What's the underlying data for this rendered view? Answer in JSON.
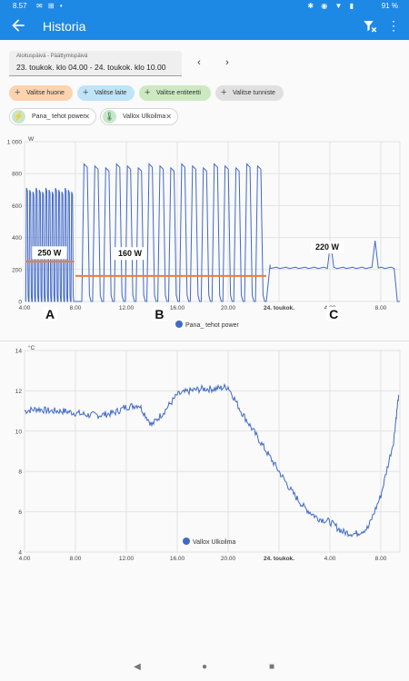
{
  "status_bar": {
    "time": "8.57",
    "left_icons": "✉ ⊞ •",
    "right_icons": "✱ ◉ ▼ ▮",
    "battery": "91 %"
  },
  "app_bar": {
    "title": "Historia",
    "back_icon": "arrow-back-icon",
    "filter_icon": "filter-remove-icon",
    "more_icon": "more-vert-icon"
  },
  "date_range": {
    "label": "Aloituspäivä - Päättymispäivä",
    "value": "23. toukok. klo 04.00 - 24. toukok. klo 10.00",
    "prev": "‹",
    "next": "›"
  },
  "chips": [
    {
      "label": "Valitse huone",
      "color": "#fbd3ae"
    },
    {
      "label": "Valitse laite",
      "color": "#bfe3f7"
    },
    {
      "label": "Valitse entiteetti",
      "color": "#cde9c1"
    },
    {
      "label": "Valitse tunniste",
      "color": "#e0e0e0"
    }
  ],
  "selected": [
    {
      "label": "Pana_ tehot power",
      "icon": "flash-icon"
    },
    {
      "label": "Vallox Ulkoilma",
      "icon": "thermometer-icon"
    }
  ],
  "power_chart": {
    "unit": "W",
    "y_ticks": [
      "0",
      "200",
      "400",
      "600",
      "800",
      "1 000"
    ],
    "x_ticks": [
      "4.00",
      "8.00",
      "12.00",
      "16.00",
      "20.00",
      "24. toukok.",
      "4.00",
      "8.00"
    ],
    "legend": "Pana_ tehot power",
    "series_color": "#4169c7",
    "annotations": [
      {
        "text": "250 W",
        "value_w": 250
      },
      {
        "text": "160 W",
        "value_w": 160
      },
      {
        "text": "220 W",
        "value_w": 220
      }
    ],
    "section_labels": [
      "A",
      "B",
      "C"
    ]
  },
  "temp_chart": {
    "unit": "°C",
    "y_ticks": [
      "4",
      "6",
      "8",
      "10",
      "12",
      "14"
    ],
    "x_ticks": [
      "4.00",
      "8.00",
      "12.00",
      "16.00",
      "20.00",
      "24. toukok.",
      "4.00",
      "8.00"
    ],
    "legend": "Vallox Ulkoilma",
    "series_color": "#4169c7"
  },
  "chart_data": [
    {
      "type": "line",
      "x_unit": "hours since 23.5. 00:00",
      "xlim": [
        4,
        33.5
      ],
      "ylim": [
        0,
        1000
      ],
      "ylabel": "W",
      "series": [
        {
          "name": "Pana_ tehot power",
          "cycles": [
            {
              "start": 4.1,
              "end": 7.9,
              "count": 15,
              "peak": 710,
              "base": 0
            },
            {
              "start": 8.5,
              "end": 23.0,
              "count": 17,
              "peak": 860,
              "base": 0
            }
          ],
          "plateau": {
            "start": 23.3,
            "end": 33.2,
            "value": 210
          },
          "spikes": [
            {
              "x": 28.0,
              "value": 370
            },
            {
              "x": 31.5,
              "value": 380
            }
          ]
        }
      ],
      "reference_lines": [
        {
          "x0": 4.1,
          "x1": 7.9,
          "value": 250,
          "color": "#f07d32"
        },
        {
          "x0": 8.0,
          "x1": 23.0,
          "value": 160,
          "color": "#f07d32"
        }
      ]
    },
    {
      "type": "line",
      "x_unit": "hours since 23.5. 00:00",
      "xlim": [
        4,
        33.5
      ],
      "ylim": [
        4,
        14
      ],
      "ylabel": "°C",
      "series": [
        {
          "name": "Vallox Ulkoilma",
          "x": [
            4,
            5,
            6,
            7,
            8,
            9,
            10,
            11,
            12,
            13,
            14,
            15,
            16,
            17,
            18,
            19,
            20,
            21,
            22,
            23,
            24,
            25,
            26,
            27,
            28,
            29,
            30,
            31,
            32,
            33,
            33.4
          ],
          "y": [
            11.0,
            11.1,
            11.0,
            11.0,
            10.9,
            10.8,
            10.8,
            10.9,
            11.2,
            11.3,
            10.3,
            11.0,
            11.8,
            12.0,
            12.1,
            12.1,
            12.2,
            11.0,
            10.0,
            9.0,
            8.0,
            7.0,
            6.2,
            5.7,
            5.5,
            5.0,
            4.9,
            5.2,
            6.8,
            9.5,
            11.8
          ]
        }
      ]
    }
  ]
}
